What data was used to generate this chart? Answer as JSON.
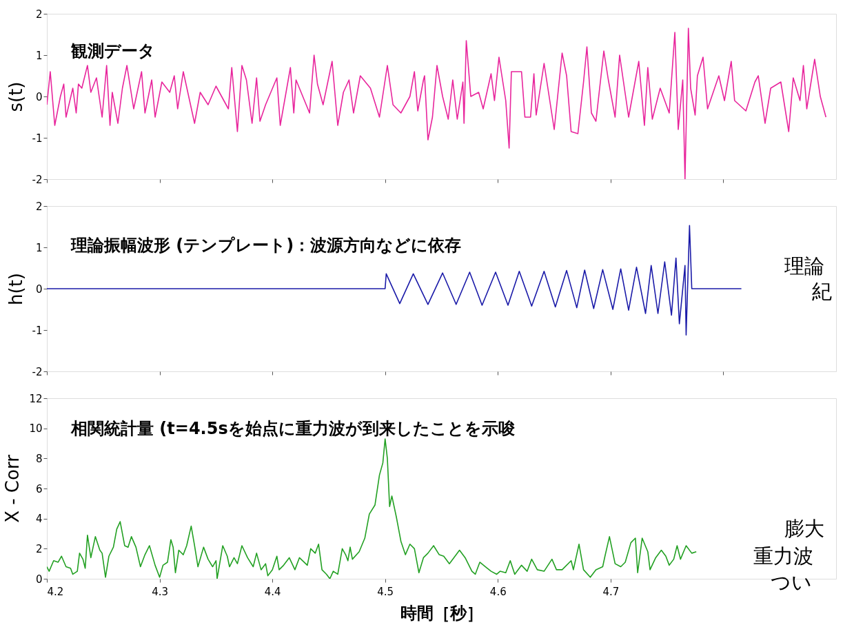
{
  "chart_data": [
    {
      "type": "line",
      "title": "観測データ",
      "ylabel": "s(t)",
      "xlim": [
        4.2,
        4.9
      ],
      "xticks": [
        4.2,
        4.3,
        4.4,
        4.5,
        4.6,
        4.7,
        4.8
      ],
      "ylim": [
        -2,
        2
      ],
      "yticks": [
        -2,
        -1,
        0,
        1,
        2
      ],
      "tick_labels": "y",
      "grid": false,
      "marker": "none",
      "line_style": "solid",
      "series": [
        {
          "color": "#e8259c",
          "x": [
            4.2,
            4.203,
            4.207,
            4.212,
            4.215,
            4.217,
            4.223,
            4.226,
            4.228,
            4.231,
            4.236,
            4.239,
            4.244,
            4.249,
            4.253,
            4.256,
            4.258,
            4.263,
            4.267,
            4.271,
            4.277,
            4.284,
            4.287,
            4.293,
            4.296,
            4.302,
            4.309,
            4.313,
            4.316,
            4.321,
            4.331,
            4.336,
            4.343,
            4.35,
            4.361,
            4.364,
            4.369,
            4.373,
            4.377,
            4.382,
            4.386,
            4.389,
            4.394,
            4.404,
            4.407,
            4.416,
            4.419,
            4.421,
            4.433,
            4.437,
            4.44,
            4.445,
            4.453,
            4.458,
            4.463,
            4.468,
            4.472,
            4.478,
            4.487,
            4.495,
            4.502,
            4.507,
            4.514,
            4.522,
            4.526,
            4.529,
            4.534,
            4.535,
            4.538,
            4.542,
            4.546,
            4.551,
            4.556,
            4.56,
            4.564,
            4.569,
            4.57,
            4.572,
            4.576,
            4.583,
            4.587,
            4.594,
            4.597,
            4.601,
            4.607,
            4.61,
            4.612,
            4.621,
            4.624,
            4.629,
            4.632,
            4.634,
            4.641,
            4.65,
            4.657,
            4.661,
            4.665,
            4.671,
            4.676,
            4.679,
            4.683,
            4.687,
            4.694,
            4.698,
            4.704,
            4.708,
            4.716,
            4.725,
            4.73,
            4.733,
            4.737,
            4.744,
            4.752,
            4.757,
            4.76,
            4.764,
            4.766,
            4.769,
            4.771,
            4.775,
            4.777,
            4.782,
            4.786,
            4.796,
            4.801,
            4.807,
            4.81,
            4.82,
            4.828,
            4.831,
            4.837,
            4.842,
            4.851,
            4.858,
            4.862,
            4.868,
            4.871,
            4.874,
            4.881,
            4.886,
            4.891
          ],
          "values": [
            -0.2,
            0.6,
            -0.7,
            0.0,
            0.3,
            -0.5,
            0.2,
            -0.4,
            0.3,
            0.2,
            0.75,
            0.1,
            0.45,
            -0.5,
            0.75,
            -0.7,
            0.1,
            -0.65,
            0.2,
            0.75,
            -0.3,
            0.6,
            -0.4,
            0.4,
            -0.5,
            0.35,
            0.1,
            0.5,
            -0.3,
            0.6,
            -0.65,
            0.1,
            -0.2,
            0.25,
            -0.3,
            0.7,
            -0.85,
            0.75,
            0.4,
            -0.65,
            0.45,
            -0.6,
            -0.2,
            0.45,
            -0.7,
            0.7,
            -0.4,
            0.4,
            -0.4,
            1.0,
            0.3,
            -0.2,
            0.85,
            -0.7,
            0.1,
            0.4,
            -0.4,
            0.5,
            0.2,
            -0.5,
            0.75,
            -0.2,
            -0.4,
            0.0,
            0.6,
            -0.35,
            0.4,
            0.5,
            -1.05,
            -0.5,
            0.75,
            0.0,
            -0.55,
            0.4,
            -0.55,
            0.35,
            -0.65,
            1.35,
            0.0,
            0.1,
            -0.3,
            0.55,
            -0.1,
            0.95,
            -0.1,
            -1.25,
            0.6,
            0.6,
            -0.5,
            -0.5,
            0.55,
            -0.45,
            0.8,
            -0.8,
            1.05,
            0.5,
            -0.85,
            -0.9,
            0.35,
            1.2,
            -0.4,
            -0.6,
            1.1,
            0.4,
            -0.5,
            1.0,
            -0.5,
            0.85,
            -0.7,
            0.7,
            -0.55,
            0.2,
            -0.4,
            1.55,
            -0.8,
            0.4,
            -2.0,
            1.65,
            0.2,
            -0.45,
            0.5,
            0.95,
            -0.3,
            0.5,
            -0.1,
            0.85,
            -0.1,
            -0.35,
            0.35,
            0.5,
            -0.65,
            0.2,
            0.35,
            -0.85,
            0.45,
            -0.1,
            0.75,
            -0.3,
            0.9,
            0.0,
            -0.5
          ]
        }
      ]
    },
    {
      "type": "line",
      "title": "理論振幅波形 (テンプレート)：波源方向などに依存",
      "ylabel": "h(t)",
      "xlim": [
        4.2,
        4.9
      ],
      "xticks": [
        4.2,
        4.3,
        4.4,
        4.5,
        4.6,
        4.7,
        4.8
      ],
      "ylim": [
        -2,
        2
      ],
      "yticks": [
        -2,
        -1,
        0,
        1,
        2
      ],
      "tick_labels": "y",
      "grid": false,
      "marker": "none",
      "line_style": "solid",
      "annotations": [
        "理論",
        "紀"
      ],
      "series": [
        {
          "color": "#1a1aa8",
          "x": [
            4.2,
            4.5,
            4.501,
            4.513,
            4.525,
            4.538,
            4.551,
            4.563,
            4.575,
            4.586,
            4.598,
            4.609,
            4.619,
            4.63,
            4.641,
            4.651,
            4.661,
            4.67,
            4.677,
            4.685,
            4.693,
            4.702,
            4.709,
            4.716,
            4.723,
            4.731,
            4.736,
            4.742,
            4.748,
            4.754,
            4.758,
            4.761,
            4.766,
            4.767,
            4.77,
            4.772,
            4.816
          ],
          "values": [
            0,
            0,
            0.36,
            -0.36,
            0.36,
            -0.38,
            0.38,
            -0.38,
            0.4,
            -0.4,
            0.4,
            -0.4,
            0.42,
            -0.42,
            0.42,
            -0.44,
            0.44,
            -0.46,
            0.45,
            -0.48,
            0.46,
            -0.5,
            0.48,
            -0.52,
            0.52,
            -0.6,
            0.56,
            -0.6,
            0.65,
            -0.64,
            0.74,
            -0.85,
            0.56,
            -1.12,
            1.53,
            0,
            0
          ]
        }
      ]
    },
    {
      "type": "line",
      "title": "相関統計量 (t=4.5sを始点に重力波が到来したことを示唆",
      "xlabel": "時間［秒］",
      "ylabel": "X - Corr",
      "xlim": [
        4.2,
        4.9
      ],
      "xticks": [
        4.2,
        4.3,
        4.4,
        4.5,
        4.6,
        4.7
      ],
      "ylim": [
        0,
        12
      ],
      "yticks": [
        0,
        2,
        4,
        6,
        8,
        10,
        12
      ],
      "grid": false,
      "marker": "none",
      "line_style": "solid",
      "annotations": [
        "膨大",
        "重力波",
        "つい"
      ],
      "series": [
        {
          "color": "#22a022",
          "x": [
            4.2,
            4.202,
            4.206,
            4.21,
            4.213,
            4.217,
            4.221,
            4.223,
            4.227,
            4.229,
            4.232,
            4.234,
            4.236,
            4.239,
            4.243,
            4.247,
            4.249,
            4.252,
            4.255,
            4.259,
            4.262,
            4.265,
            4.269,
            4.272,
            4.275,
            4.279,
            4.283,
            4.287,
            4.291,
            4.296,
            4.3,
            4.303,
            4.307,
            4.31,
            4.312,
            4.314,
            4.317,
            4.321,
            4.324,
            4.328,
            4.331,
            4.334,
            4.339,
            4.343,
            4.347,
            4.35,
            4.351,
            4.356,
            4.36,
            4.362,
            4.366,
            4.369,
            4.373,
            4.378,
            4.383,
            4.386,
            4.39,
            4.394,
            4.396,
            4.4,
            4.404,
            4.406,
            4.41,
            4.415,
            4.42,
            4.424,
            4.431,
            4.434,
            4.438,
            4.441,
            4.444,
            4.448,
            4.451,
            4.454,
            4.458,
            4.462,
            4.465,
            4.467,
            4.469,
            4.471,
            4.477,
            4.482,
            4.486,
            4.491,
            4.495,
            4.498,
            4.5,
            4.502,
            4.504,
            4.506,
            4.51,
            4.514,
            4.518,
            4.522,
            4.526,
            4.53,
            4.534,
            4.538,
            4.543,
            4.548,
            4.552,
            4.557,
            4.561,
            4.566,
            4.571,
            4.577,
            4.58,
            4.584,
            4.589,
            4.594,
            4.599,
            4.602,
            4.607,
            4.611,
            4.615,
            4.621,
            4.626,
            4.63,
            4.635,
            4.641,
            4.648,
            4.652,
            4.657,
            4.665,
            4.667,
            4.672,
            4.676,
            4.682,
            4.687,
            4.693,
            4.695,
            4.699,
            4.704,
            4.709,
            4.713,
            4.718,
            4.722,
            4.724,
            4.728,
            4.733,
            4.735,
            4.74,
            4.745,
            4.749,
            4.752,
            4.756,
            4.759,
            4.762,
            4.767,
            4.772,
            4.776
          ],
          "values": [
            0.8,
            0.5,
            1.2,
            1.1,
            1.5,
            0.8,
            0.7,
            0.3,
            0.5,
            1.7,
            1.3,
            0.7,
            2.9,
            1.4,
            2.8,
            1.9,
            1.7,
            0.1,
            1.5,
            2.1,
            3.3,
            3.8,
            2.2,
            2.1,
            2.8,
            2.1,
            0.8,
            1.6,
            2.2,
            0.9,
            0.1,
            0.9,
            1.1,
            2.6,
            2.1,
            0.4,
            1.9,
            1.6,
            2.2,
            3.5,
            2.2,
            0.8,
            2.1,
            1.3,
            0.8,
            1.2,
            0.0,
            2.2,
            1.5,
            0.8,
            1.4,
            1.0,
            2.2,
            1.4,
            0.8,
            1.7,
            0.6,
            1.0,
            0.2,
            0.6,
            1.5,
            0.6,
            0.9,
            1.4,
            0.6,
            1.4,
            0.9,
            2.0,
            1.7,
            2.3,
            0.6,
            0.3,
            0.0,
            0.5,
            0.3,
            2.0,
            1.6,
            1.2,
            2.1,
            1.3,
            1.8,
            2.7,
            4.3,
            4.9,
            6.9,
            7.7,
            9.3,
            8.0,
            4.8,
            5.5,
            4.1,
            2.5,
            1.6,
            2.3,
            2.0,
            0.4,
            1.4,
            1.7,
            2.2,
            1.6,
            1.5,
            1.0,
            1.4,
            1.9,
            1.4,
            0.5,
            0.3,
            1.1,
            0.8,
            0.5,
            0.3,
            0.5,
            0.4,
            1.2,
            0.3,
            0.9,
            0.5,
            1.3,
            0.6,
            0.5,
            1.3,
            0.6,
            0.6,
            1.2,
            0.6,
            2.3,
            0.6,
            0.1,
            0.6,
            0.8,
            1.5,
            2.8,
            1.0,
            0.8,
            1.1,
            2.4,
            2.7,
            0.4,
            2.7,
            1.8,
            0.6,
            1.4,
            1.9,
            1.5,
            0.9,
            1.3,
            2.2,
            1.3,
            2.2,
            1.7,
            1.8
          ]
        }
      ]
    }
  ]
}
